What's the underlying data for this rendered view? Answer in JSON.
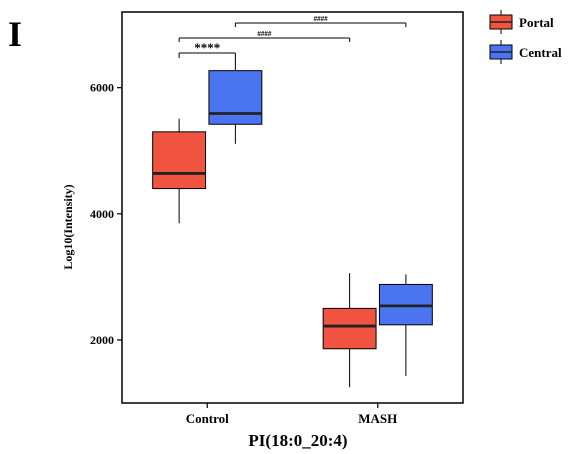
{
  "panel_letter": "I",
  "chart_data": {
    "type": "box",
    "title": "",
    "xlabel": "PI(18:0_20:4)",
    "ylabel": "Log10(Intensity)",
    "categories": [
      "Control",
      "MASH"
    ],
    "yticks": [
      2000,
      4000,
      6000
    ],
    "ylim": [
      1000,
      7200
    ],
    "series": [
      {
        "name": "Portal",
        "color": "#f0533f",
        "boxes": [
          {
            "category": "Control",
            "min": 3850,
            "q1": 4400,
            "median": 4640,
            "q3": 5300,
            "max": 5510
          },
          {
            "category": "MASH",
            "min": 1250,
            "q1": 1860,
            "median": 2220,
            "q3": 2500,
            "max": 3060
          }
        ]
      },
      {
        "name": "Central",
        "color": "#4a74f0",
        "boxes": [
          {
            "category": "Control",
            "min": 5110,
            "q1": 5420,
            "median": 5590,
            "q3": 6270,
            "max": 6480
          },
          {
            "category": "MASH",
            "min": 1430,
            "q1": 2240,
            "median": 2540,
            "q3": 2880,
            "max": 3040
          }
        ]
      }
    ],
    "legend_position": "top-right-outside",
    "grid": false,
    "annotations": [
      {
        "label": "****",
        "from": "Control Portal",
        "to": "Control Central"
      },
      {
        "label": "####",
        "from": "Control Portal",
        "to": "MASH Portal"
      },
      {
        "label": "####",
        "from": "Control Central",
        "to": "MASH Central"
      }
    ]
  }
}
